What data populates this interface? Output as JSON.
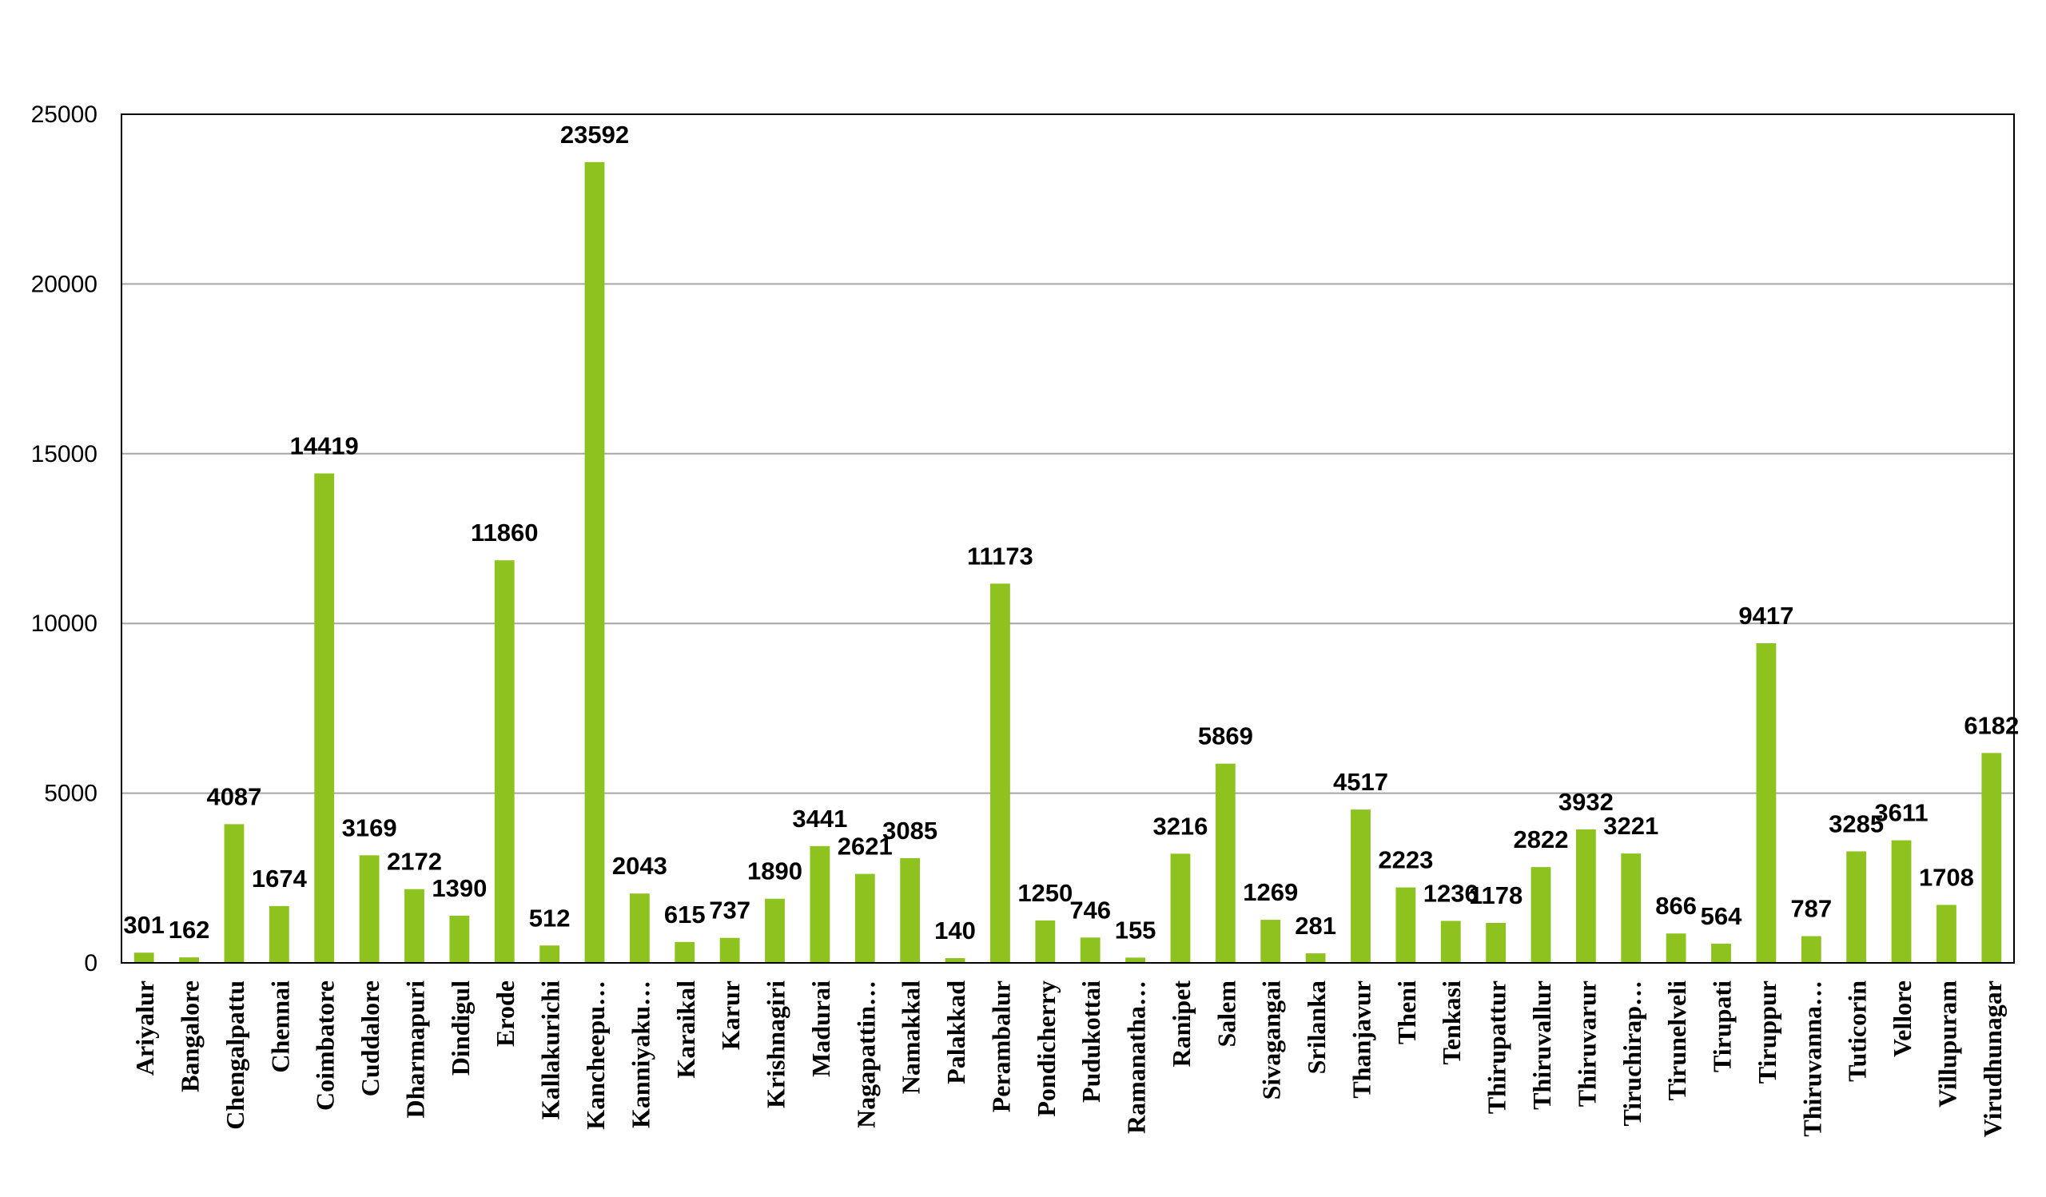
{
  "chart_data": {
    "type": "bar",
    "title": "",
    "xlabel": "",
    "ylabel": "",
    "ylim": [
      0,
      25000
    ],
    "yticks": [
      "0",
      "5000",
      "10000",
      "15000",
      "20000",
      "25000"
    ],
    "grid": true,
    "legend": "none",
    "bar_color": "#8DC21F",
    "grid_color": "#A6A6A6",
    "categories": [
      "Ariyalur",
      "Bangalore",
      "Chengalpattu",
      "Chennai",
      "Coimbatore",
      "Cuddalore",
      "Dharmapuri",
      "Dindigul",
      "Erode",
      "Kallakurichi",
      "Kancheepu…",
      "Kanniyaku…",
      "Karaikal",
      "Karur",
      "Krishnagiri",
      "Madurai",
      "Nagapattin…",
      "Namakkal",
      "Palakkad",
      "Perambalur",
      "Pondicherry",
      "Pudukottai",
      "Ramanatha…",
      "Ranipet",
      "Salem",
      "Sivagangai",
      "Srilanka",
      "Thanjavur",
      "Theni",
      "Tenkasi",
      "Thirupattur",
      "Thiruvallur",
      "Thiruvarur",
      "Tiruchirap…",
      "Tirunelveli",
      "Tirupati",
      "Tiruppur",
      "Thiruvanna…",
      "Tuticorin",
      "Vellore",
      "Villupuram",
      "Virudhunagar"
    ],
    "values": [
      301,
      162,
      4087,
      1674,
      14419,
      3169,
      2172,
      1390,
      11860,
      512,
      23592,
      2043,
      615,
      737,
      1890,
      3441,
      2621,
      3085,
      140,
      11173,
      1250,
      746,
      155,
      3216,
      5869,
      1269,
      281,
      4517,
      2223,
      1236,
      1178,
      2822,
      3932,
      3221,
      866,
      564,
      9417,
      787,
      3285,
      3611,
      1708,
      6182
    ],
    "data_labels": [
      "301",
      "162",
      "4087",
      "1674",
      "14419",
      "3169",
      "2172",
      "1390",
      "11860",
      "512",
      "23592",
      "2043",
      "615",
      "737",
      "1890",
      "3441",
      "2621",
      "3085",
      "140",
      "11173",
      "1250",
      "746",
      "155",
      "3216",
      "5869",
      "1269",
      "281",
      "4517",
      "2223",
      "1236",
      "1178",
      "2822",
      "3932",
      "3221",
      "866",
      "564",
      "9417",
      "787",
      "3285",
      "3611",
      "1708",
      "6182"
    ]
  }
}
